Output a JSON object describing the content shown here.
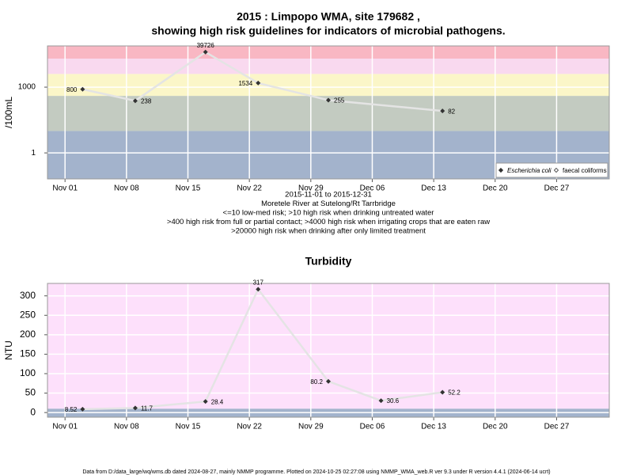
{
  "chart_data": [
    {
      "type": "line",
      "title": [
        "2015 : Limpopo WMA, site 179682 ,",
        "showing high risk guidelines for indicators of microbial pathogens."
      ],
      "notes": [
        "2015-11-01 to 2015-12-31",
        "Moretele River at Sutelong/Rt Tarrbridge",
        "<=10 low-med risk; >10 high risk when drinking untreated water",
        ">400 high risk from full or partial contact; >4000 high risk when irrigating crops that are eaten raw",
        ">20000 high risk when drinking after only limited treatment"
      ],
      "ylabel": "/100mL",
      "x": [
        "Nov 03",
        "Nov 09",
        "Nov 17",
        "Nov 23",
        "Dec 01",
        "Dec 14"
      ],
      "series": [
        {
          "name": "Escherichia coli",
          "color": "#333333",
          "values": [
            800,
            238,
            39726,
            1534,
            255,
            82
          ]
        },
        {
          "name": "faecal coliforms",
          "color": "#333333",
          "values": [
            null,
            null,
            null,
            null,
            null,
            null
          ]
        }
      ],
      "log": true,
      "ylim": [
        0.065,
        76000
      ],
      "yticks": [
        1,
        1000
      ],
      "xlim": [
        "Oct 30",
        "Jan 02"
      ],
      "xticks": [
        "Nov 01",
        "Nov 08",
        "Nov 15",
        "Nov 22",
        "Nov 29",
        "Dec 06",
        "Dec 13",
        "Dec 20",
        "Dec 27"
      ],
      "band_limits": [
        10,
        400,
        4000,
        20000
      ],
      "band_colors": [
        "#a3b3cc",
        "#c3cbc1",
        "#fbf6c8",
        "#f9d9ef",
        "#f9b7c3"
      ],
      "legend": "lower right",
      "grid": true
    },
    {
      "type": "line",
      "title": [
        "Turbidity"
      ],
      "ylabel": "NTU",
      "x": [
        "Nov 03",
        "Nov 09",
        "Nov 17",
        "Nov 23",
        "Dec 01",
        "Dec 07",
        "Dec 14"
      ],
      "series": [
        {
          "name": "Turbidity",
          "color": "#333333",
          "values": [
            8.52,
            11.7,
            28.4,
            317,
            80.2,
            30.6,
            52.2
          ]
        }
      ],
      "log": false,
      "ylim": [
        -12,
        332
      ],
      "yticks": [
        0,
        50,
        100,
        150,
        200,
        250,
        300
      ],
      "xlim": [
        "Oct 30",
        "Jan 02"
      ],
      "xticks": [
        "Nov 01",
        "Nov 08",
        "Nov 15",
        "Nov 22",
        "Nov 29",
        "Dec 06",
        "Dec 13",
        "Dec 20",
        "Dec 27"
      ],
      "band_limits": [
        10
      ],
      "band_colors": [
        "#a3b3cc",
        "#fde0fb"
      ],
      "grid": true
    }
  ],
  "footer": "Data from D:/data_large/wq/wms.db dated 2024-08-27, mainly NMMP programme. Plotted on 2024-10-25 02:27:08 using NMMP_WMA_web.R ver 9.3 under R version 4.4.1 (2024-06-14 ucrt)"
}
